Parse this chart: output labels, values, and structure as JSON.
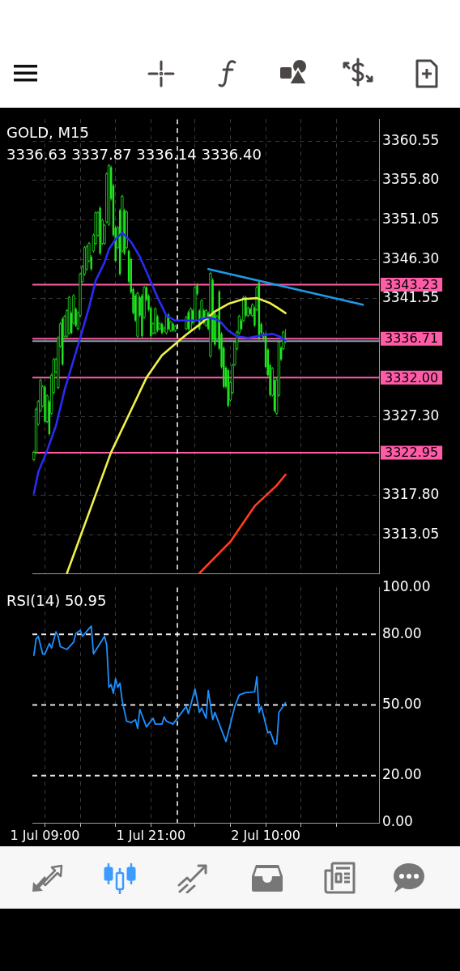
{
  "chart_data": [
    {
      "type": "candlestick",
      "title": "GOLD, M15",
      "subtitle": "3336.63 3337.87 3336.14 3336.40",
      "color": "#1ee61e",
      "marker": "none",
      "grid": true,
      "tick_labels": "y",
      "xlim": [
        "--07-01T07:35",
        "--07-02T22:50"
      ],
      "xticks": [
        "--07-01T09:00",
        "--07-01T13:00",
        "--07-01T17:00",
        "--07-01T21:00",
        "--07-02T02:00",
        "--07-02T06:00",
        "--07-02T10:00",
        "--07-02T14:00",
        "--07-02T18:00"
      ],
      "ylim": [
        3308.3,
        3363.2
      ],
      "yticks": [
        {
          "value": 3313.05,
          "label": "3313.05"
        },
        {
          "value": 3317.8,
          "label": "3317.80"
        },
        {
          "value": 3327.3,
          "label": "3327.30"
        },
        {
          "value": 3341.55,
          "label": "3341.55"
        },
        {
          "value": 3346.3,
          "label": "3346.30"
        },
        {
          "value": 3351.05,
          "label": "3351.05"
        },
        {
          "value": 3355.8,
          "label": "3355.80"
        },
        {
          "value": 3360.55,
          "label": "3360.55"
        }
      ],
      "x": [
        "--07-01T07:45",
        "--07-01T08:00",
        "--07-01T08:15",
        "--07-01T08:30",
        "--07-01T08:45",
        "--07-01T09:00",
        "--07-01T09:15",
        "--07-01T09:30",
        "--07-01T09:45",
        "--07-01T10:00",
        "--07-01T10:15",
        "--07-01T10:30",
        "--07-01T10:45",
        "--07-01T11:00",
        "--07-01T11:15",
        "--07-01T11:30",
        "--07-01T11:45",
        "--07-01T12:00",
        "--07-01T12:15",
        "--07-01T12:30",
        "--07-01T12:45",
        "--07-01T13:00",
        "--07-01T13:15",
        "--07-01T13:30",
        "--07-01T13:45",
        "--07-01T14:00",
        "--07-01T14:15",
        "--07-01T14:30",
        "--07-01T14:45",
        "--07-01T15:00",
        "--07-01T15:15",
        "--07-01T15:30",
        "--07-01T15:45",
        "--07-01T16:00",
        "--07-01T16:15",
        "--07-01T16:30",
        "--07-01T16:45",
        "--07-01T17:00",
        "--07-01T17:15",
        "--07-01T17:30",
        "--07-01T17:45",
        "--07-01T18:00",
        "--07-01T18:15",
        "--07-01T18:30",
        "--07-01T18:45",
        "--07-01T19:00",
        "--07-01T19:15",
        "--07-01T19:30",
        "--07-01T19:45",
        "--07-01T20:00",
        "--07-01T20:15",
        "--07-01T20:30",
        "--07-01T20:45",
        "--07-01T21:00",
        "--07-01T21:15",
        "--07-01T21:30",
        "--07-01T21:45",
        "--07-01T22:00",
        "--07-01T22:15",
        "--07-01T22:30",
        "--07-01T22:45",
        "--07-01T23:00",
        "--07-01T23:15",
        "--07-01T23:30",
        "--07-01T23:45",
        "--07-02T01:00",
        "--07-02T01:15",
        "--07-02T01:30",
        "--07-02T01:45",
        "--07-02T02:00",
        "--07-02T02:15",
        "--07-02T02:30",
        "--07-02T02:45",
        "--07-02T03:00",
        "--07-02T03:15",
        "--07-02T03:30",
        "--07-02T03:45",
        "--07-02T04:00",
        "--07-02T04:15",
        "--07-02T04:30",
        "--07-02T04:45",
        "--07-02T05:00",
        "--07-02T05:15",
        "--07-02T05:30",
        "--07-02T05:45",
        "--07-02T06:00",
        "--07-02T06:15",
        "--07-02T06:30",
        "--07-02T06:45",
        "--07-02T07:00",
        "--07-02T07:15",
        "--07-02T07:30",
        "--07-02T07:45",
        "--07-02T08:00",
        "--07-02T08:15",
        "--07-02T08:30",
        "--07-02T08:45",
        "--07-02T09:00",
        "--07-02T09:15",
        "--07-02T09:30",
        "--07-02T09:45",
        "--07-02T10:00",
        "--07-02T10:15",
        "--07-02T10:30",
        "--07-02T10:45",
        "--07-02T11:00",
        "--07-02T11:15",
        "--07-02T11:30",
        "--07-02T11:45",
        "--07-02T12:00",
        "--07-02T12:15"
      ],
      "ohlc": [
        [
          3322.1,
          3323.2,
          3321.9,
          3323.0
        ],
        [
          3323.0,
          3328.4,
          3322.8,
          3328.2
        ],
        [
          3326.4,
          3329.3,
          3326.2,
          3329.1
        ],
        [
          3328.0,
          3331.9,
          3327.8,
          3331.7
        ],
        [
          3328.6,
          3331.1,
          3328.4,
          3330.9
        ],
        [
          3330.9,
          3331.1,
          3326.5,
          3326.7
        ],
        [
          3326.7,
          3330.0,
          3326.5,
          3329.8
        ],
        [
          3329.1,
          3329.3,
          3325.0,
          3325.2
        ],
        [
          3327.7,
          3332.5,
          3327.5,
          3332.3
        ],
        [
          3330.2,
          3334.4,
          3330.0,
          3334.2
        ],
        [
          3332.7,
          3334.4,
          3332.5,
          3334.2
        ],
        [
          3330.8,
          3337.0,
          3330.6,
          3336.8
        ],
        [
          3335.8,
          3338.7,
          3335.6,
          3338.5
        ],
        [
          3339.1,
          3339.3,
          3333.4,
          3333.6
        ],
        [
          3337.0,
          3339.6,
          3336.8,
          3339.4
        ],
        [
          3337.0,
          3340.3,
          3336.8,
          3340.1
        ],
        [
          3337.4,
          3341.9,
          3337.2,
          3341.7
        ],
        [
          3339.8,
          3340.0,
          3337.2,
          3337.4
        ],
        [
          3338.6,
          3342.1,
          3338.4,
          3341.9
        ],
        [
          3340.3,
          3340.5,
          3338.1,
          3338.3
        ],
        [
          3337.9,
          3340.0,
          3337.7,
          3339.8
        ],
        [
          3339.5,
          3344.7,
          3339.3,
          3344.5
        ],
        [
          3343.6,
          3345.6,
          3343.4,
          3345.4
        ],
        [
          3344.5,
          3347.9,
          3344.3,
          3347.7
        ],
        [
          3345.1,
          3348.0,
          3344.9,
          3347.8
        ],
        [
          3346.1,
          3348.4,
          3345.9,
          3348.2
        ],
        [
          3346.6,
          3346.8,
          3344.9,
          3345.1
        ],
        [
          3347.3,
          3349.4,
          3347.1,
          3349.2
        ],
        [
          3348.2,
          3352.1,
          3348.0,
          3351.9
        ],
        [
          3349.2,
          3352.1,
          3349.0,
          3351.9
        ],
        [
          3352.5,
          3352.7,
          3346.8,
          3347.0
        ],
        [
          3348.2,
          3351.2,
          3348.0,
          3351.0
        ],
        [
          3348.2,
          3350.6,
          3348.0,
          3350.4
        ],
        [
          3350.8,
          3356.8,
          3350.6,
          3356.6
        ],
        [
          3350.5,
          3357.8,
          3350.3,
          3357.6
        ],
        [
          3357.4,
          3357.6,
          3353.4,
          3353.6
        ],
        [
          3355.2,
          3355.4,
          3349.0,
          3349.2
        ],
        [
          3350.1,
          3350.3,
          3345.9,
          3346.1
        ],
        [
          3347.7,
          3350.3,
          3347.5,
          3350.1
        ],
        [
          3352.2,
          3352.4,
          3344.3,
          3344.5
        ],
        [
          3347.3,
          3354.1,
          3347.1,
          3353.9
        ],
        [
          3352.2,
          3352.4,
          3346.8,
          3347.0
        ],
        [
          3347.7,
          3352.2,
          3347.5,
          3352.0
        ],
        [
          3347.3,
          3347.5,
          3343.4,
          3343.6
        ],
        [
          3346.3,
          3346.5,
          3342.1,
          3342.3
        ],
        [
          3342.7,
          3342.9,
          3339.6,
          3339.8
        ],
        [
          3341.9,
          3342.1,
          3338.7,
          3338.9
        ],
        [
          3337.0,
          3342.4,
          3336.8,
          3342.2
        ],
        [
          3341.7,
          3341.9,
          3339.3,
          3339.5
        ],
        [
          3341.9,
          3342.1,
          3336.8,
          3337.0
        ],
        [
          3339.3,
          3343.1,
          3339.1,
          3342.9
        ],
        [
          3342.9,
          3343.1,
          3341.2,
          3341.4
        ],
        [
          3341.9,
          3342.1,
          3340.0,
          3340.2
        ],
        [
          3340.4,
          3340.6,
          3336.8,
          3337.0
        ],
        [
          3337.4,
          3338.7,
          3337.2,
          3338.5
        ],
        [
          3337.4,
          3340.5,
          3337.2,
          3340.3
        ],
        [
          3339.4,
          3339.6,
          3337.5,
          3337.7
        ],
        [
          3337.9,
          3338.7,
          3337.7,
          3338.5
        ],
        [
          3338.5,
          3338.7,
          3337.2,
          3337.4
        ],
        [
          3337.7,
          3338.2,
          3337.5,
          3338.0
        ],
        [
          3337.4,
          3339.6,
          3337.2,
          3339.4
        ],
        [
          3339.6,
          3339.8,
          3337.7,
          3337.9
        ],
        [
          3337.7,
          3338.9,
          3337.5,
          3338.7
        ],
        [
          3338.5,
          3338.7,
          3337.5,
          3337.7
        ],
        [
          3337.7,
          3338.4,
          3337.5,
          3338.2
        ],
        [
          3337.9,
          3339.5,
          3337.7,
          3339.3
        ],
        [
          3339.9,
          3340.1,
          3337.7,
          3337.9
        ],
        [
          3337.7,
          3340.5,
          3337.5,
          3340.3
        ],
        [
          3340.1,
          3340.3,
          3338.4,
          3338.6
        ],
        [
          3338.9,
          3343.1,
          3338.7,
          3342.9
        ],
        [
          3343.2,
          3343.4,
          3341.9,
          3342.1
        ],
        [
          3340.1,
          3340.3,
          3337.7,
          3337.9
        ],
        [
          3339.3,
          3341.5,
          3339.1,
          3341.3
        ],
        [
          3340.1,
          3340.3,
          3338.4,
          3338.6
        ],
        [
          3338.3,
          3340.3,
          3338.1,
          3340.1
        ],
        [
          3339.8,
          3340.0,
          3337.7,
          3337.9
        ],
        [
          3334.6,
          3344.8,
          3334.4,
          3344.6
        ],
        [
          3343.8,
          3344.0,
          3336.5,
          3336.7
        ],
        [
          3339.8,
          3340.0,
          3335.8,
          3336.0
        ],
        [
          3336.7,
          3339.6,
          3336.5,
          3339.4
        ],
        [
          3342.4,
          3342.6,
          3335.3,
          3335.5
        ],
        [
          3337.3,
          3337.5,
          3333.1,
          3333.3
        ],
        [
          3335.6,
          3335.8,
          3330.7,
          3330.9
        ],
        [
          3333.2,
          3333.4,
          3330.7,
          3330.9
        ],
        [
          3332.9,
          3333.1,
          3328.4,
          3328.6
        ],
        [
          3329.3,
          3331.6,
          3329.1,
          3331.4
        ],
        [
          3330.2,
          3333.7,
          3330.0,
          3333.5
        ],
        [
          3333.6,
          3336.5,
          3333.4,
          3336.3
        ],
        [
          3335.5,
          3337.7,
          3335.3,
          3337.5
        ],
        [
          3337.4,
          3339.6,
          3337.2,
          3339.4
        ],
        [
          3338.9,
          3339.1,
          3337.7,
          3337.9
        ],
        [
          3338.9,
          3341.9,
          3338.7,
          3341.7
        ],
        [
          3341.7,
          3341.9,
          3339.3,
          3339.5
        ],
        [
          3339.5,
          3340.6,
          3339.3,
          3340.4
        ],
        [
          3340.3,
          3340.5,
          3339.5,
          3339.7
        ],
        [
          3339.5,
          3341.0,
          3339.3,
          3340.8
        ],
        [
          3340.4,
          3340.6,
          3338.1,
          3338.3
        ],
        [
          3340.2,
          3343.1,
          3340.0,
          3342.9
        ],
        [
          3343.5,
          3343.7,
          3336.5,
          3336.7
        ],
        [
          3338.5,
          3338.7,
          3337.2,
          3337.4
        ],
        [
          3337.3,
          3337.5,
          3336.5,
          3336.7
        ],
        [
          3337.3,
          3337.5,
          3333.1,
          3333.3
        ],
        [
          3335.4,
          3335.6,
          3332.1,
          3332.3
        ],
        [
          3333.5,
          3333.7,
          3329.7,
          3329.9
        ],
        [
          3329.9,
          3333.3,
          3329.7,
          3333.1
        ],
        [
          3331.7,
          3331.9,
          3327.8,
          3328.0
        ],
        [
          3327.7,
          3331.9,
          3327.5,
          3331.7
        ],
        [
          3329.9,
          3336.5,
          3329.7,
          3336.3
        ],
        [
          3335.6,
          3335.8,
          3334.0,
          3334.2
        ],
        [
          3335.5,
          3337.7,
          3335.3,
          3337.5
        ],
        [
          3336.63,
          3337.87,
          3336.14,
          3336.4
        ]
      ],
      "series": [
        {
          "type": "line",
          "color": "#2a2af5",
          "x": [
            "--07-01T07:45",
            "--07-01T08:15",
            "--07-01T09:15",
            "--07-01T10:15",
            "--07-01T11:15",
            "--07-01T13:00",
            "--07-01T14:00",
            "--07-01T14:45",
            "--07-01T15:45",
            "--07-01T16:15",
            "--07-01T17:00",
            "--07-01T17:45",
            "--07-01T18:45",
            "--07-01T19:45",
            "--07-01T20:30",
            "--07-01T21:45",
            "--07-01T22:45",
            "--07-01T23:45",
            "--07-02T02:15",
            "--07-02T03:30",
            "--07-02T04:45",
            "--07-02T05:45",
            "--07-02T06:45",
            "--07-02T08:00",
            "--07-02T09:00",
            "--07-02T10:45",
            "--07-02T11:30",
            "--07-02T12:15"
          ],
          "values": [
            3318.0,
            3320.6,
            3323.2,
            3326.2,
            3330.6,
            3336.8,
            3340.5,
            3343.7,
            3345.9,
            3347.5,
            3348.7,
            3349.5,
            3348.4,
            3346.6,
            3344.8,
            3341.7,
            3339.5,
            3338.9,
            3338.9,
            3339.3,
            3338.9,
            3337.7,
            3337.0,
            3336.8,
            3337.0,
            3337.3,
            3337.0,
            3336.5
          ]
        },
        {
          "type": "line",
          "color": "#f0f04a",
          "x": [
            "--07-01T11:30",
            "--07-01T16:30",
            "--07-01T20:30",
            "--07-01T22:15",
            "--07-02T01:00",
            "--07-02T02:30",
            "--07-02T04:15",
            "--07-02T05:45",
            "--07-02T07:30",
            "--07-02T09:00",
            "--07-02T10:30",
            "--07-02T11:15",
            "--07-02T12:15"
          ],
          "values": [
            3308.4,
            3323.0,
            3332.0,
            3334.7,
            3337.2,
            3338.4,
            3340.0,
            3340.9,
            3341.5,
            3341.6,
            3341.0,
            3340.5,
            3339.8
          ]
        },
        {
          "type": "line",
          "color": "#ff3d1f",
          "x": [
            "--07-02T02:30",
            "--07-02T06:00",
            "--07-02T08:45",
            "--07-02T11:15",
            "--07-02T12:15"
          ],
          "values": [
            3308.4,
            3312.2,
            3316.5,
            3319.0,
            3320.3
          ]
        },
        {
          "type": "line",
          "color": "#1e9be8",
          "x": [
            "--07-02T03:30",
            "--07-02T21:00"
          ],
          "values": [
            3345.1,
            3340.8
          ]
        }
      ],
      "ref_lines": [
        {
          "axis": "y",
          "value": 3343.23,
          "label": "3343.23",
          "color": "#ff5ca8"
        },
        {
          "axis": "y",
          "value": 3336.71,
          "label": "3336.71",
          "color": "#ff5ca8"
        },
        {
          "axis": "y",
          "value": 3336.4,
          "color": "#8c9aa6"
        },
        {
          "axis": "y",
          "value": 3332.0,
          "label": "3332.00",
          "color": "#ff5ca8"
        },
        {
          "axis": "y",
          "value": 3322.95,
          "label": "3322.95",
          "color": "#ff5ca8"
        },
        {
          "axis": "x",
          "value": "--07-02T00:00",
          "color": "#ffffff",
          "line_style": "dashed"
        }
      ]
    },
    {
      "type": "line",
      "title": "RSI(14) 50.95",
      "marker": "none",
      "grid": "x",
      "xlim": [
        "--07-01T07:35",
        "--07-02T22:50"
      ],
      "xticks": [
        {
          "value": "--07-01T09:00",
          "label": "1 Jul 09:00"
        },
        {
          "value": "--07-01T13:00",
          "label": null
        },
        {
          "value": "--07-01T17:00",
          "label": null
        },
        {
          "value": "--07-01T21:00",
          "label": "1 Jul 21:00"
        },
        {
          "value": "--07-02T02:00",
          "label": null
        },
        {
          "value": "--07-02T06:00",
          "label": null
        },
        {
          "value": "--07-02T10:00",
          "label": "2 Jul 10:00"
        },
        {
          "value": "--07-02T14:00",
          "label": null
        },
        {
          "value": "--07-02T18:00",
          "label": null
        }
      ],
      "ylim": [
        0,
        100
      ],
      "yticks": [
        {
          "value": 0,
          "label": "0.00"
        },
        {
          "value": 20,
          "label": "20.00"
        },
        {
          "value": 50,
          "label": "50.00"
        },
        {
          "value": 80,
          "label": "80.00"
        },
        {
          "value": 100,
          "label": "100.00"
        }
      ],
      "series": [
        {
          "color": "#1e90ff",
          "x": [
            "--07-01T07:45",
            "--07-01T08:00",
            "--07-01T08:15",
            "--07-01T08:45",
            "--07-01T09:00",
            "--07-01T09:30",
            "--07-01T09:45",
            "--07-01T10:15",
            "--07-01T10:30",
            "--07-01T10:45",
            "--07-01T11:30",
            "--07-01T12:15",
            "--07-01T12:30",
            "--07-01T13:00",
            "--07-01T13:15",
            "--07-01T14:15",
            "--07-01T14:30",
            "--07-01T15:45",
            "--07-01T16:00",
            "--07-01T16:15",
            "--07-01T16:30",
            "--07-01T16:45",
            "--07-01T17:00",
            "--07-01T17:15",
            "--07-01T17:30",
            "--07-01T17:45",
            "--07-01T18:15",
            "--07-01T18:45",
            "--07-01T19:15",
            "--07-01T19:30",
            "--07-01T19:45",
            "--07-01T20:30",
            "--07-01T21:15",
            "--07-01T21:30",
            "--07-01T22:15",
            "--07-01T22:30",
            "--07-01T22:45",
            "--07-01T23:30",
            "--07-02T01:00",
            "--07-02T01:15",
            "--07-02T02:00",
            "--07-02T02:30",
            "--07-02T02:45",
            "--07-02T03:15",
            "--07-02T03:30",
            "--07-02T04:00",
            "--07-02T04:15",
            "--07-02T05:00",
            "--07-02T05:30",
            "--07-02T06:30",
            "--07-02T07:00",
            "--07-02T07:45",
            "--07-02T08:45",
            "--07-02T09:00",
            "--07-02T09:15",
            "--07-02T09:30",
            "--07-02T10:15",
            "--07-02T10:30",
            "--07-02T11:00",
            "--07-02T11:15",
            "--07-02T11:30",
            "--07-02T12:15"
          ],
          "values": [
            71.1,
            78.0,
            79.2,
            71.7,
            71.7,
            76.1,
            74.2,
            81.1,
            79.2,
            74.8,
            73.6,
            76.7,
            80.4,
            81.7,
            79.2,
            83.5,
            71.7,
            79.2,
            75.5,
            57.5,
            58.7,
            55.0,
            61.2,
            57.5,
            59.3,
            51.9,
            43.2,
            42.5,
            43.8,
            40.1,
            48.1,
            40.7,
            44.4,
            41.9,
            41.9,
            45.0,
            43.2,
            41.9,
            49.4,
            46.3,
            56.8,
            46.9,
            48.8,
            44.4,
            56.2,
            43.8,
            46.9,
            39.4,
            34.5,
            49.4,
            54.3,
            55.3,
            55.6,
            62.0,
            46.9,
            49.4,
            38.2,
            38.8,
            33.5,
            33.5,
            46.9,
            51.0
          ]
        }
      ],
      "ref_lines": [
        {
          "axis": "y",
          "value": 80,
          "color": "#e6e6e6",
          "line_style": "dashed"
        },
        {
          "axis": "y",
          "value": 50,
          "color": "#e6e6e6",
          "line_style": "dashed"
        },
        {
          "axis": "y",
          "value": 20,
          "color": "#e6e6e6",
          "line_style": "dashed"
        },
        {
          "axis": "x",
          "value": "--07-02T00:00",
          "color": "#ffffff",
          "line_style": "dashed"
        }
      ]
    }
  ]
}
